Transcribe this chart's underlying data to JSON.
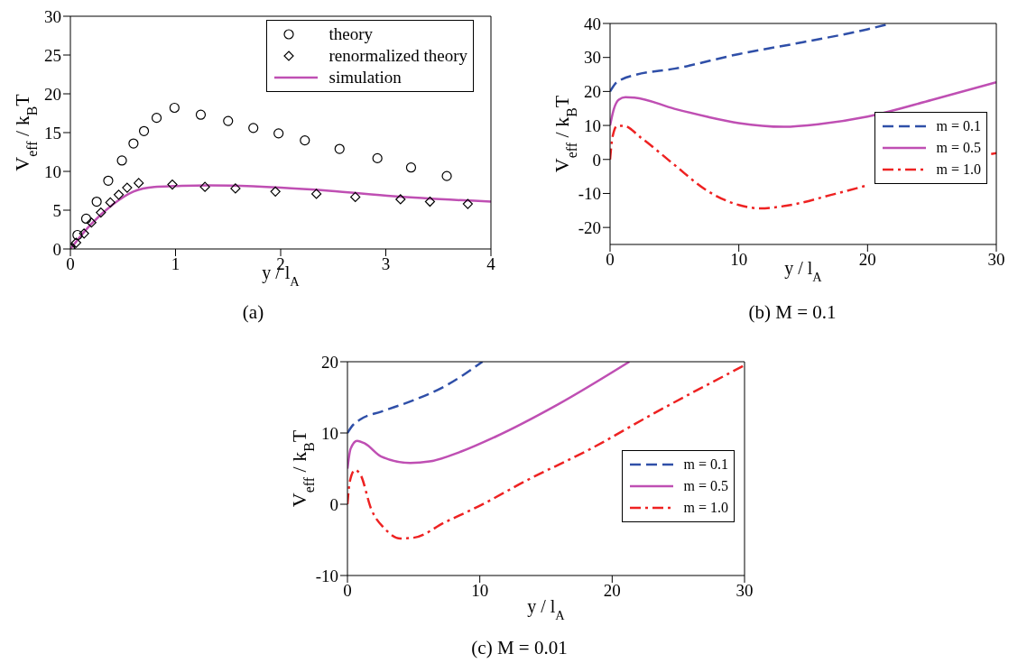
{
  "chart_data": [
    {
      "type": "line",
      "xlabel": "y / l$_{A}$",
      "ylabel": "V$_{eff}$ / k$_{B}$T",
      "annotations": [
        "(a)"
      ],
      "xlim": [
        0,
        4
      ],
      "ylim": [
        0,
        30
      ],
      "xticks": [
        0,
        1,
        2,
        3,
        4
      ],
      "yticks": [
        0,
        5,
        10,
        15,
        20,
        25,
        30
      ],
      "legend": "top right",
      "series": [
        {
          "name": "theory",
          "type": "scatter",
          "marker": "circle",
          "color": "#000000",
          "x": [
            0,
            0.067,
            0.15,
            0.25,
            0.36,
            0.49,
            0.6,
            0.7,
            0.82,
            0.99,
            1.24,
            1.5,
            1.74,
            1.98,
            2.23,
            2.56,
            2.92,
            3.24,
            3.58
          ],
          "values": [
            0.1,
            1.8,
            3.9,
            6.1,
            8.8,
            11.4,
            13.6,
            15.2,
            16.9,
            18.2,
            17.3,
            16.5,
            15.6,
            14.9,
            14.0,
            12.9,
            11.7,
            10.5,
            9.4
          ]
        },
        {
          "name": "renormalized theory",
          "type": "scatter",
          "marker": "diamond",
          "color": "#000000",
          "x": [
            0,
            0.055,
            0.13,
            0.2,
            0.29,
            0.38,
            0.46,
            0.54,
            0.65,
            0.97,
            1.28,
            1.57,
            1.95,
            2.34,
            2.71,
            3.14,
            3.42,
            3.78
          ],
          "values": [
            0.1,
            0.8,
            2.0,
            3.4,
            4.7,
            6.0,
            7.0,
            7.9,
            8.5,
            8.3,
            8.0,
            7.8,
            7.4,
            7.1,
            6.7,
            6.4,
            6.1,
            5.8
          ]
        },
        {
          "name": "simulation",
          "type": "line",
          "line_style": "solid",
          "color": "#bf4fb3",
          "x": [
            0,
            0.19,
            0.4,
            0.6,
            0.8,
            1.0,
            1.3,
            2,
            2.46,
            3.07,
            4
          ],
          "values": [
            0,
            3.1,
            5.7,
            7.4,
            8.0,
            8.1,
            8.2,
            7.9,
            7.5,
            6.8,
            6.1
          ]
        }
      ]
    },
    {
      "type": "line",
      "xlabel": "y / l$_{A}$",
      "ylabel": "V$_{eff}$ / k$_{B}$T",
      "annotations": [
        "(b) M = 0.1"
      ],
      "xlim": [
        0,
        30
      ],
      "ylim": [
        -25,
        40
      ],
      "xticks": [
        0,
        10,
        20,
        30
      ],
      "yticks": [
        -20,
        -10,
        0,
        10,
        20,
        30,
        40
      ],
      "legend": "right",
      "series": [
        {
          "name": "m = 0.1",
          "type": "line",
          "line_style": "dashed",
          "color": "#2f4fa8",
          "x": [
            0,
            0.43,
            0.93,
            1.9,
            5,
            10,
            15,
            20,
            21.8
          ],
          "values": [
            20,
            22.4,
            23.6,
            24.8,
            26.7,
            31,
            34.5,
            38.3,
            40
          ]
        },
        {
          "name": "m = 0.5",
          "type": "line",
          "line_style": "solid",
          "color": "#bf4fb3",
          "x": [
            0,
            0.3,
            0.68,
            1.2,
            1.9,
            5,
            7.5,
            10,
            13.5,
            16.3,
            20,
            25,
            30
          ],
          "values": [
            10,
            14.9,
            17.6,
            18.3,
            18.2,
            14.9,
            12.6,
            10.7,
            9.6,
            10.4,
            12.6,
            17.5,
            22.7
          ]
        },
        {
          "name": "m = 1.0",
          "type": "line",
          "line_style": "dashdot",
          "color": "#ee2222",
          "x": [
            0,
            0.18,
            0.55,
            1.05,
            2.4,
            5,
            7.5,
            10,
            11.7,
            13.7,
            17.5,
            20,
            22,
            25,
            28,
            29.6,
            30
          ],
          "values": [
            0,
            6.4,
            9.9,
            9.9,
            6.4,
            -1.6,
            -9.1,
            -13.4,
            -14.4,
            -13.6,
            -10.1,
            -7.6,
            null,
            null,
            null,
            1.6,
            1.9
          ]
        }
      ]
    },
    {
      "type": "line",
      "xlabel": "y / l$_{A}$",
      "ylabel": "V$_{eff}$ / k$_{B}$T",
      "annotations": [
        "(c) M = 0.01"
      ],
      "xlim": [
        0,
        30
      ],
      "ylim": [
        -10,
        20
      ],
      "xticks": [
        0,
        10,
        20,
        30
      ],
      "yticks": [
        -10,
        0,
        10,
        20
      ],
      "legend": "right",
      "series": [
        {
          "name": "m = 0.1",
          "type": "line",
          "line_style": "dashed",
          "color": "#2f4fa8",
          "x": [
            0,
            0.36,
            0.97,
            2.55,
            5,
            7.4,
            10.2
          ],
          "values": [
            10,
            11,
            11.9,
            13,
            14.6,
            16.6,
            20
          ]
        },
        {
          "name": "m = 0.5",
          "type": "line",
          "line_style": "solid",
          "color": "#bf4fb3",
          "x": [
            0,
            0.24,
            0.73,
            1.34,
            2.55,
            4.74,
            6.2,
            8.6,
            11.1,
            15.9,
            21.3
          ],
          "values": [
            5.0,
            7.8,
            8.9,
            8.5,
            6.7,
            5.8,
            6.0,
            7.4,
            9.4,
            14.0,
            20
          ]
        },
        {
          "name": "m = 1.0",
          "type": "line",
          "line_style": "dashdot",
          "color": "#ee2222",
          "x": [
            0,
            0.17,
            0.56,
            0.97,
            1.8,
            2.8,
            4.0,
            5,
            7.4,
            9.9,
            13.5,
            18.4,
            23.2,
            30
          ],
          "values": [
            0,
            3.1,
            4.8,
            4.2,
            -0.7,
            -3.4,
            -4.8,
            -4.7,
            -2.5,
            -0.3,
            3.3,
            7.8,
            12.8,
            19.5
          ]
        }
      ]
    }
  ]
}
